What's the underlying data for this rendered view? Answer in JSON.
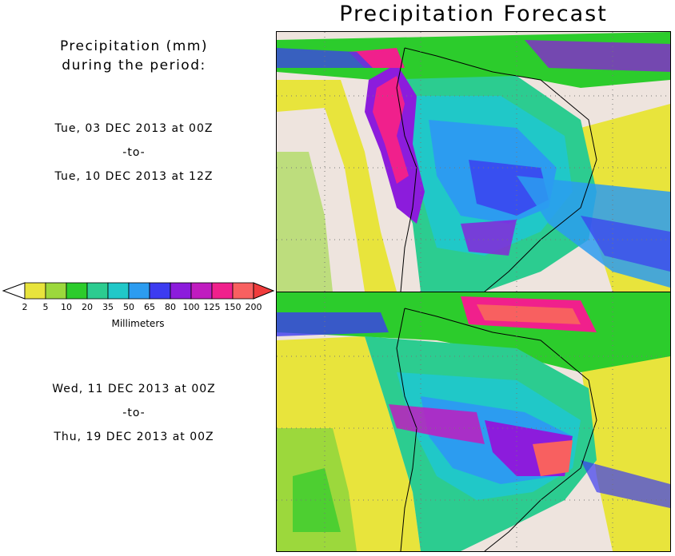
{
  "title": "Precipitation Forecast",
  "subtitle": [
    "Precipitation (mm)",
    "during the period:"
  ],
  "periods": [
    {
      "start": "Tue, 03 DEC 2013 at 00Z",
      "sep": "-to-",
      "end": "Tue, 10 DEC 2013 at 12Z"
    },
    {
      "start": "Wed, 11 DEC 2013 at 00Z",
      "sep": "-to-",
      "end": "Thu, 19 DEC 2013 at 00Z"
    }
  ],
  "legend": {
    "units": "Millimeters",
    "ticks": [
      "2",
      "5",
      "10",
      "20",
      "35",
      "50",
      "65",
      "80",
      "100",
      "125",
      "150",
      "200"
    ],
    "colors": [
      "#e8e43c",
      "#9cd83c",
      "#2ccc2c",
      "#2ccc90",
      "#20c8c8",
      "#2c9cf0",
      "#3c3cf0",
      "#8c1cdc",
      "#c01cc0",
      "#f0208c",
      "#f86060"
    ],
    "under_color": "#ffffff",
    "over_color": "#f03c3c"
  }
}
